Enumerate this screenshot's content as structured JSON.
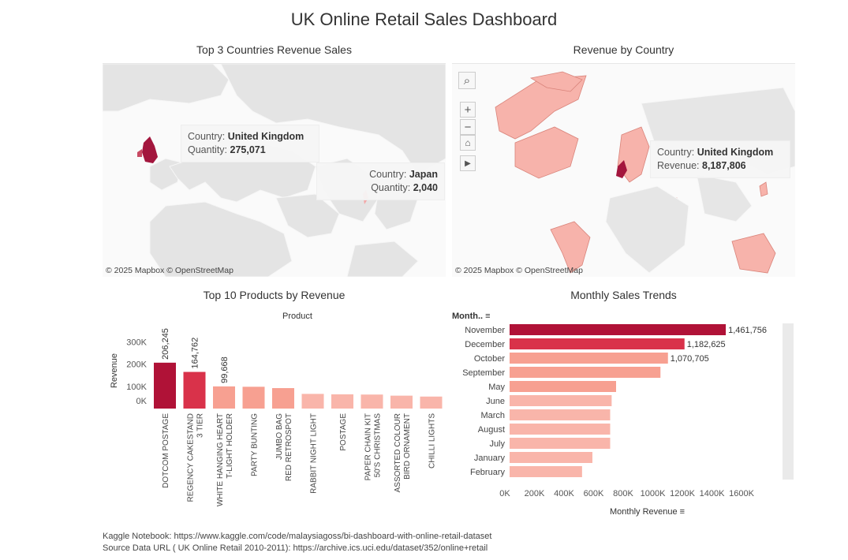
{
  "dashboard": {
    "title": "UK Online Retail Sales Dashboard",
    "footer": {
      "notebook": "Kaggle Notebook: https://www.kaggle.com/code/malaysiagoss/bi-dashboard-with-online-retail-dataset",
      "source": "Source Data URL ( UK Online Retail 2010-2011): https://archive.ics.uci.edu/dataset/352/online+retail"
    }
  },
  "map_left": {
    "title": "Top 3 Countries Revenue Sales",
    "credit": "© 2025 Mapbox  © OpenStreetMap",
    "tooltips": [
      {
        "label": "Country:",
        "country": "United Kingdom",
        "metric": "Quantity:",
        "value": "275,071"
      },
      {
        "label": "Country:",
        "country": "Japan",
        "metric": "Quantity:",
        "value": "2,040"
      }
    ]
  },
  "map_right": {
    "title": "Revenue by Country",
    "credit": "© 2025 Mapbox  © OpenStreetMap",
    "tooltip": {
      "label": "Country:",
      "country": "United Kingdom",
      "metric": "Revenue:",
      "value": "8,187,806"
    },
    "tools": [
      "search-icon",
      "zoom-in-icon",
      "zoom-out-icon",
      "home-icon",
      "play-icon"
    ]
  },
  "colors": {
    "dark": "#b01237",
    "mid": "#d9324a",
    "light": "#f7a091",
    "pale": "#f9b5aa",
    "uk": "#a3163d"
  },
  "chart_data": [
    {
      "type": "bar",
      "title": "Top 10 Products by Revenue",
      "header": "Product",
      "ylabel": "Revenue",
      "ylim": [
        0,
        300000
      ],
      "yticks": [
        "0K",
        "100K",
        "200K",
        "300K"
      ],
      "categories": [
        "DOTCOM POSTAGE",
        "REGENCY CAKESTAND 3 TIER",
        "WHITE HANGING HEART T-LIGHT HOLDER",
        "PARTY BUNTING",
        "JUMBO BAG RED RETROSPOT",
        "RABBIT NIGHT LIGHT",
        "POSTAGE",
        "PAPER CHAIN KIT 50'S CHRISTMAS",
        "ASSORTED COLOUR BIRD ORNAMENT",
        "CHILLI LIGHTS"
      ],
      "values": [
        206245,
        164762,
        99668,
        98000,
        92000,
        66000,
        64000,
        63000,
        58000,
        54000
      ],
      "data_labels": [
        "206,245",
        "164,762",
        "99,668",
        "",
        "",
        "",
        "",
        "",
        "",
        ""
      ]
    },
    {
      "type": "bar",
      "orientation": "horizontal",
      "title": "Monthly Sales Trends",
      "header": "Month..",
      "xlabel": "Monthly Revenue",
      "xlim": [
        0,
        1600000
      ],
      "xticks": [
        "0K",
        "200K",
        "400K",
        "600K",
        "800K",
        "1000K",
        "1200K",
        "1400K",
        "1600K"
      ],
      "categories": [
        "November",
        "December",
        "October",
        "September",
        "May",
        "June",
        "March",
        "August",
        "July",
        "January",
        "February"
      ],
      "values": [
        1461756,
        1182625,
        1070705,
        1020000,
        720000,
        690000,
        680000,
        680000,
        680000,
        560000,
        490000
      ],
      "data_labels": [
        "1,461,756",
        "1,182,625",
        "1,070,705",
        "",
        "",
        "",
        "",
        "",
        "",
        "",
        ""
      ]
    }
  ]
}
